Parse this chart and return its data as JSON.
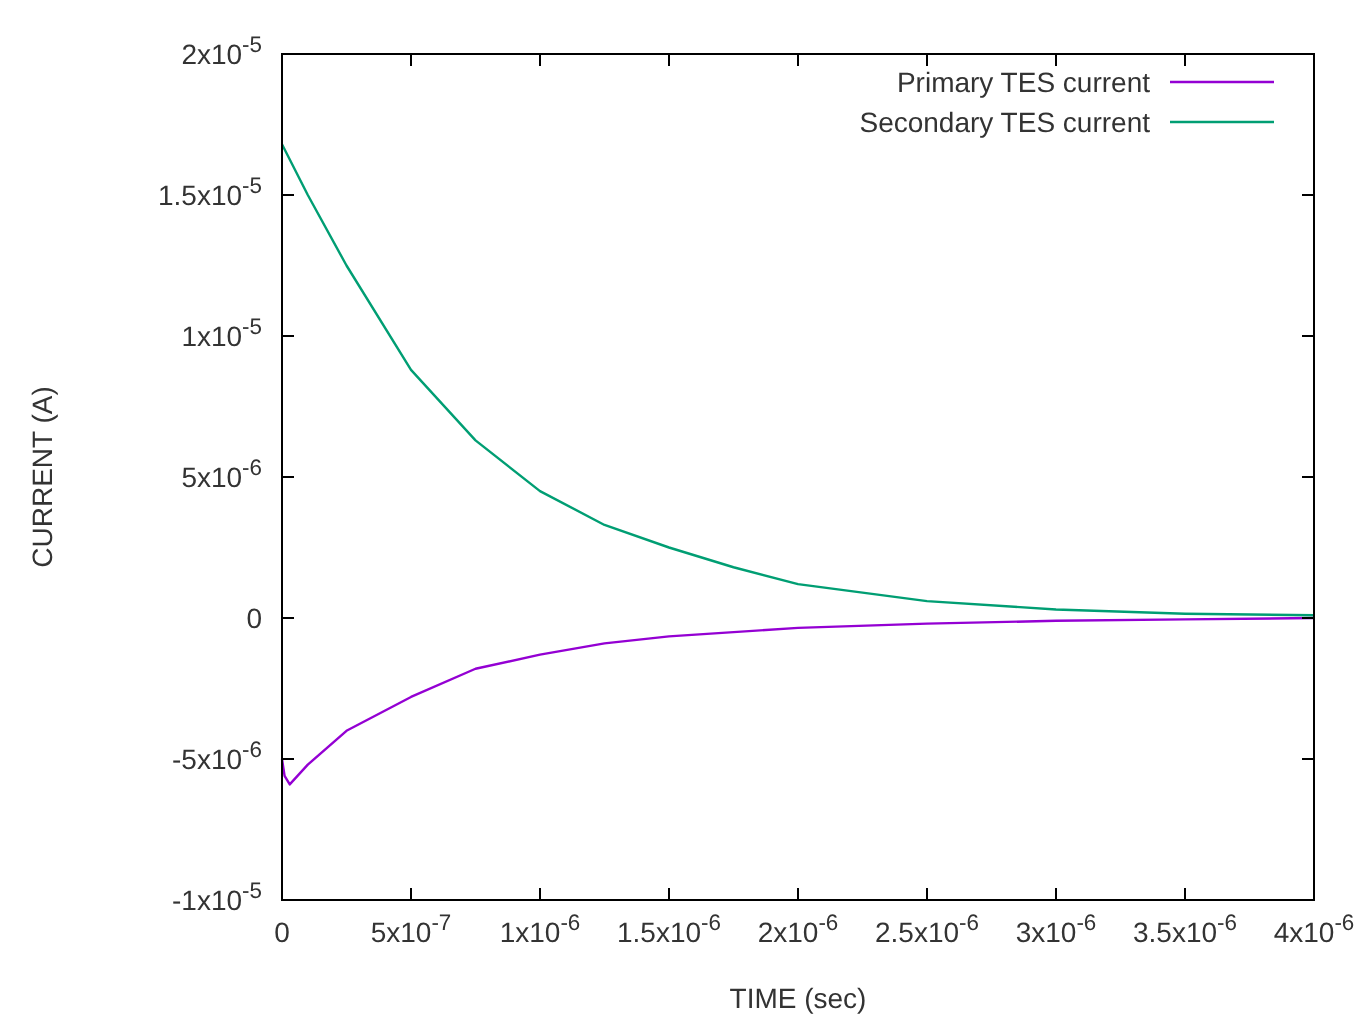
{
  "chart_data": {
    "type": "line",
    "xlabel": "TIME (sec)",
    "ylabel": "CURRENT (A)",
    "xlim": [
      0,
      4e-06
    ],
    "ylim": [
      -1e-05,
      2e-05
    ],
    "xticks": [
      0,
      {
        "value": 5e-07,
        "label": "5x10$^{-7}$"
      },
      {
        "value": 1e-06,
        "label": "1x10$^{-6}$"
      },
      {
        "value": 1.5e-06,
        "label": "1.5x10$^{-6}$"
      },
      {
        "value": 2e-06,
        "label": "2x10$^{-6}$"
      },
      {
        "value": 2.5e-06,
        "label": "2.5x10$^{-6}$"
      },
      {
        "value": 3e-06,
        "label": "3x10$^{-6}$"
      },
      {
        "value": 3.5e-06,
        "label": "3.5x10$^{-6}$"
      },
      {
        "value": 4e-06,
        "label": "4x10$^{-6}$"
      }
    ],
    "yticks": [
      {
        "value": -1e-05,
        "label": "-1x10$^{-5}$"
      },
      {
        "value": -5e-06,
        "label": "-5x10$^{-6}$"
      },
      0,
      {
        "value": 5e-06,
        "label": "5x10$^{-6}$"
      },
      {
        "value": 1e-05,
        "label": "1x10$^{-5}$"
      },
      {
        "value": 1.5e-05,
        "label": "1.5x10$^{-5}$"
      },
      {
        "value": 2e-05,
        "label": "2x10$^{-5}$"
      }
    ],
    "grid": false,
    "legend": "top right",
    "line_style": "solid",
    "series": [
      {
        "name": "Primary TES current",
        "color": "#9400d3",
        "x": [
          0,
          1e-08,
          3e-08,
          1e-07,
          2.5e-07,
          5e-07,
          7.5e-07,
          1e-06,
          1.25e-06,
          1.5e-06,
          2e-06,
          2.5e-06,
          3e-06,
          3.5e-06,
          4e-06
        ],
        "values": [
          -5e-06,
          -5.6e-06,
          -5.9e-06,
          -5.2e-06,
          -4e-06,
          -2.8e-06,
          -1.8e-06,
          -1.3e-06,
          -9e-07,
          -6.5e-07,
          -3.5e-07,
          -2e-07,
          -1e-07,
          -5e-08,
          0
        ]
      },
      {
        "name": "Secondary TES current",
        "color": "#009e73",
        "x": [
          0,
          1e-07,
          2.5e-07,
          5e-07,
          7.5e-07,
          1e-06,
          1.25e-06,
          1.5e-06,
          1.75e-06,
          2e-06,
          2.5e-06,
          3e-06,
          3.5e-06,
          4e-06
        ],
        "values": [
          1.68e-05,
          1.5e-05,
          1.25e-05,
          8.8e-06,
          6.3e-06,
          4.5e-06,
          3.3e-06,
          2.5e-06,
          1.8e-06,
          1.2e-06,
          6e-07,
          3e-07,
          1.5e-07,
          1e-07
        ]
      }
    ]
  }
}
